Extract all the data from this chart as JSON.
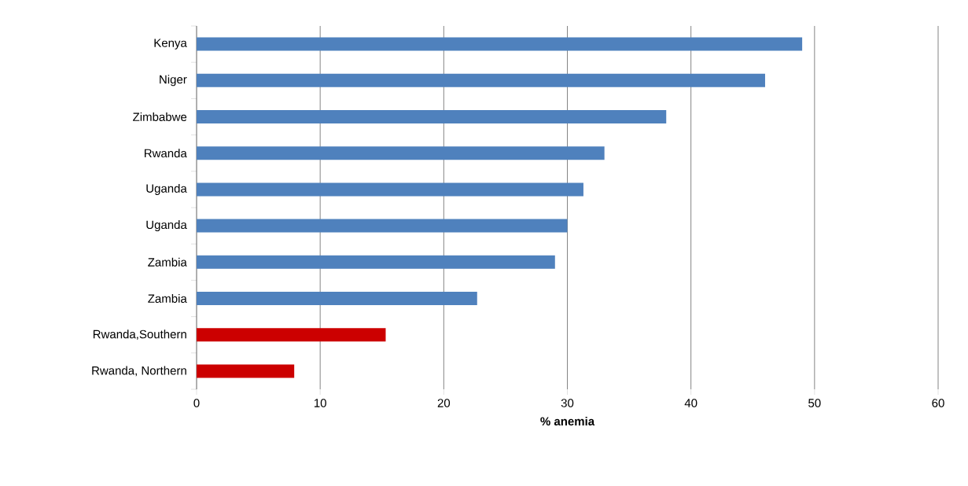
{
  "chart_data": {
    "type": "bar",
    "orientation": "horizontal",
    "xlabel": "% anemia",
    "categories": [
      "Kenya",
      "Niger",
      "Zimbabwe",
      "Rwanda",
      "Uganda",
      "Uganda",
      "Zambia",
      "Zambia",
      "Rwanda,Southern",
      "Rwanda, Northern"
    ],
    "values": [
      49,
      46,
      38,
      33,
      31.3,
      30,
      29,
      22.7,
      15.3,
      7.9
    ],
    "colors": [
      "#4f81bd",
      "#4f81bd",
      "#4f81bd",
      "#4f81bd",
      "#4f81bd",
      "#4f81bd",
      "#4f81bd",
      "#4f81bd",
      "#cc0000",
      "#cc0000"
    ],
    "xlim": [
      0,
      60
    ],
    "xticks": [
      0,
      10,
      20,
      30,
      40,
      50,
      60
    ],
    "grid": "x"
  }
}
